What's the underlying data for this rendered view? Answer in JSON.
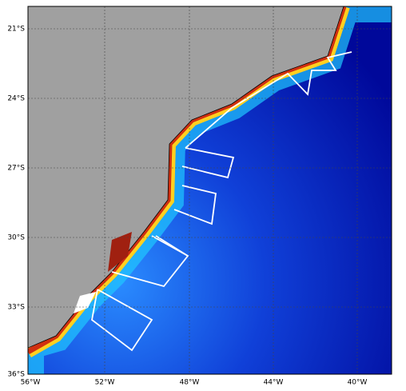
{
  "map": {
    "x_labels": [
      "56°W",
      "52°W",
      "48°W",
      "44°W",
      "40°W"
    ],
    "y_labels": [
      "21°S",
      "24°S",
      "27°S",
      "30°S",
      "33°S",
      "36°S"
    ]
  }
}
